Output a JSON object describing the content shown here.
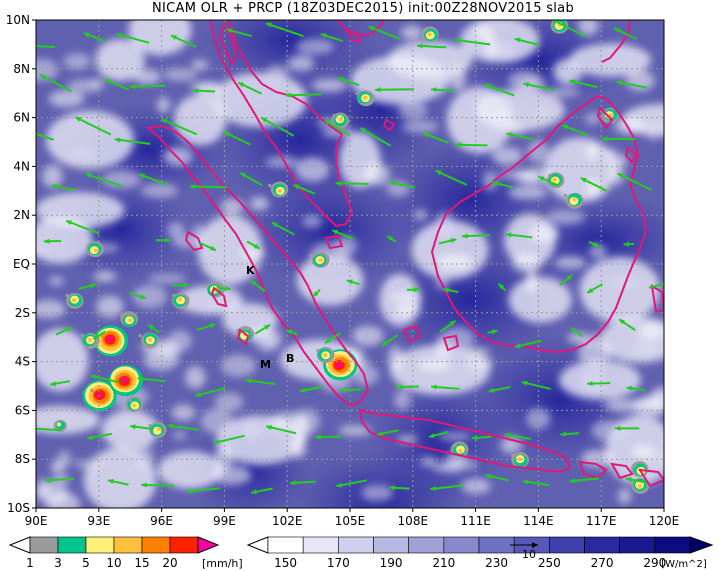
{
  "title": "NICAM OLR + PRCP (18Z03DEC2015) init:00Z28NOV2015 slab",
  "lat_labels": [
    "10N",
    "8N",
    "6N",
    "4N",
    "2N",
    "EQ",
    "2S",
    "4S",
    "6S",
    "8S",
    "10S"
  ],
  "lon_labels": [
    "90E",
    "93E",
    "96E",
    "99E",
    "102E",
    "105E",
    "108E",
    "111E",
    "114E",
    "117E",
    "120E"
  ],
  "place_labels": [
    {
      "text": "K",
      "name": "kototabang-marker"
    },
    {
      "text": "M",
      "name": "mentawai-marker"
    },
    {
      "text": "B",
      "name": "bengkulu-marker"
    }
  ],
  "prcp_colorbar": {
    "ticks": [
      "1",
      "3",
      "5",
      "10",
      "15",
      "20"
    ],
    "unit": "[mm/h]",
    "colors": [
      "#9a9a9a",
      "#00c48c",
      "#fff07a",
      "#ffc040",
      "#ff8000",
      "#ff2000",
      "#ff00a0"
    ]
  },
  "olr_colorbar": {
    "ticks": [
      "150",
      "170",
      "190",
      "210",
      "230",
      "250",
      "270",
      "290"
    ],
    "unit": "[W/m^2]",
    "colors": [
      "#ffffff",
      "#e6e6f5",
      "#d0d0ec",
      "#b8b8e2",
      "#a0a0d6",
      "#8888cc",
      "#7070c2",
      "#5858b8",
      "#4040ac",
      "#2a2aa0",
      "#1a1a90",
      "#0c0c80"
    ]
  },
  "vector_reference": "10",
  "colors": {
    "coast": "#e0187a",
    "wind": "#22cc22",
    "grid": "#999999",
    "olr_bg": "#5a5aa8"
  }
}
